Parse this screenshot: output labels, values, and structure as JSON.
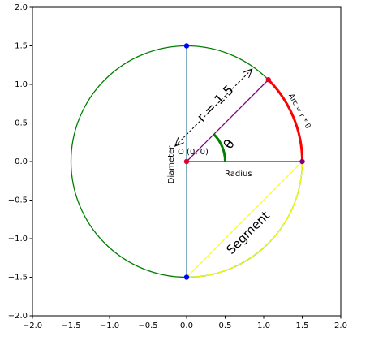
{
  "chart_data": {
    "type": "geometry",
    "radius": 1.5,
    "angle_deg": 45,
    "xlim": [
      -2,
      2
    ],
    "ylim": [
      -2,
      2
    ],
    "xticks": [
      {
        "value": -2,
        "label": "−2.0"
      },
      {
        "value": -1.5,
        "label": "−1.5"
      },
      {
        "value": -1,
        "label": "−1.0"
      },
      {
        "value": -0.5,
        "label": "−0.5"
      },
      {
        "value": 0,
        "label": "0.0"
      },
      {
        "value": 0.5,
        "label": "0.5"
      },
      {
        "value": 1,
        "label": "1.0"
      },
      {
        "value": 1.5,
        "label": "1.5"
      },
      {
        "value": 2,
        "label": "2.0"
      }
    ],
    "yticks": [
      {
        "value": -2,
        "label": "−2.0"
      },
      {
        "value": -1.5,
        "label": "−1.5"
      },
      {
        "value": -1,
        "label": "−1.0"
      },
      {
        "value": -0.5,
        "label": "−0.5"
      },
      {
        "value": 0,
        "label": "0.0"
      },
      {
        "value": 0.5,
        "label": "0.5"
      },
      {
        "value": 1,
        "label": "1.0"
      },
      {
        "value": 1.5,
        "label": "1.5"
      },
      {
        "value": 2,
        "label": "2.0"
      }
    ],
    "colors": {
      "circle": "#008000",
      "diameter": "#3f86a0",
      "radius": "#800080",
      "arc": "#ff0000",
      "angle": "#008000",
      "segment": "#ffff00",
      "end_point": "#0000ff",
      "point": "#e0002a"
    },
    "annotations": {
      "origin": "O (0, 0)",
      "radius": "Radius",
      "diameter": "Diameter",
      "theta": "θ",
      "r": "r = 1.5",
      "arc": "Arc = r * θ",
      "segment": "Segment"
    }
  }
}
